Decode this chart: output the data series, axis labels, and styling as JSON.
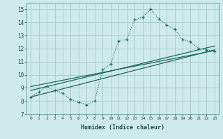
{
  "title": "",
  "xlabel": "Humidex (Indice chaleur)",
  "ylabel": "",
  "background_color": "#ceeaea",
  "grid_color": "#aacece",
  "line_color": "#1a6b5a",
  "xlim": [
    -0.5,
    23.5
  ],
  "ylim": [
    7,
    15.5
  ],
  "xtick_labels": [
    "0",
    "1",
    "2",
    "3",
    "4",
    "5",
    "6",
    "7",
    "8",
    "9",
    "10",
    "11",
    "12",
    "13",
    "14",
    "15",
    "16",
    "17",
    "18",
    "19",
    "20",
    "21",
    "22",
    "23"
  ],
  "ytick_labels": [
    "7",
    "8",
    "9",
    "10",
    "11",
    "12",
    "13",
    "14",
    "15"
  ],
  "main_line_x": [
    0,
    1,
    2,
    3,
    4,
    5,
    6,
    7,
    8,
    9,
    10,
    11,
    12,
    13,
    14,
    15,
    16,
    17,
    18,
    19,
    20,
    21,
    22,
    23
  ],
  "main_line_y": [
    8.3,
    8.7,
    9.1,
    8.8,
    8.6,
    8.1,
    7.9,
    7.7,
    8.0,
    10.4,
    10.8,
    12.6,
    12.7,
    14.2,
    14.4,
    15.0,
    14.3,
    13.8,
    13.5,
    12.7,
    12.5,
    12.0,
    11.9,
    11.8
  ],
  "line1_x": [
    0,
    23
  ],
  "line1_y": [
    8.3,
    11.9
  ],
  "line2_x": [
    0,
    23
  ],
  "line2_y": [
    8.8,
    12.2
  ],
  "line3_x": [
    0,
    23
  ],
  "line3_y": [
    9.1,
    11.85
  ]
}
